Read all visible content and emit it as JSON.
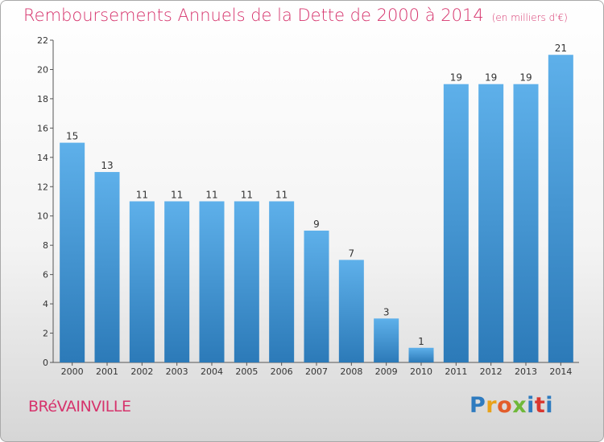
{
  "header": {
    "title": "Remboursements Annuels de la Dette de 2000 à 2014",
    "subtitle": "(en milliers d'€)"
  },
  "footer": {
    "commune": "BRéVAINVILLE",
    "logo_letters": [
      "P",
      "r",
      "o",
      "x",
      "i",
      "t",
      "i"
    ],
    "logo_colors": [
      "#2e7bbf",
      "#e8a21a",
      "#e35d2a",
      "#6fb83a",
      "#2e7bbf",
      "#d9372f",
      "#2e7bbf"
    ]
  },
  "colors": {
    "bar_light": "#5eb0ea",
    "bar_dark": "#2c7ab8",
    "accent": "#d6336c"
  },
  "chart_data": {
    "type": "bar",
    "title": "Remboursements Annuels de la Dette de 2000 à 2014",
    "categories": [
      "2000",
      "2001",
      "2002",
      "2003",
      "2004",
      "2005",
      "2006",
      "2007",
      "2008",
      "2009",
      "2010",
      "2011",
      "2012",
      "2013",
      "2014"
    ],
    "values": [
      15,
      13,
      11,
      11,
      11,
      11,
      11,
      9,
      7,
      3,
      1,
      19,
      19,
      19,
      21
    ],
    "y_ticks": [
      "0",
      "2",
      "4",
      "6",
      "8",
      "10",
      "12",
      "14",
      "16",
      "18",
      "20",
      "22"
    ],
    "ylim": [
      0,
      22
    ],
    "xlabel": "",
    "ylabel": "",
    "grid": false
  }
}
